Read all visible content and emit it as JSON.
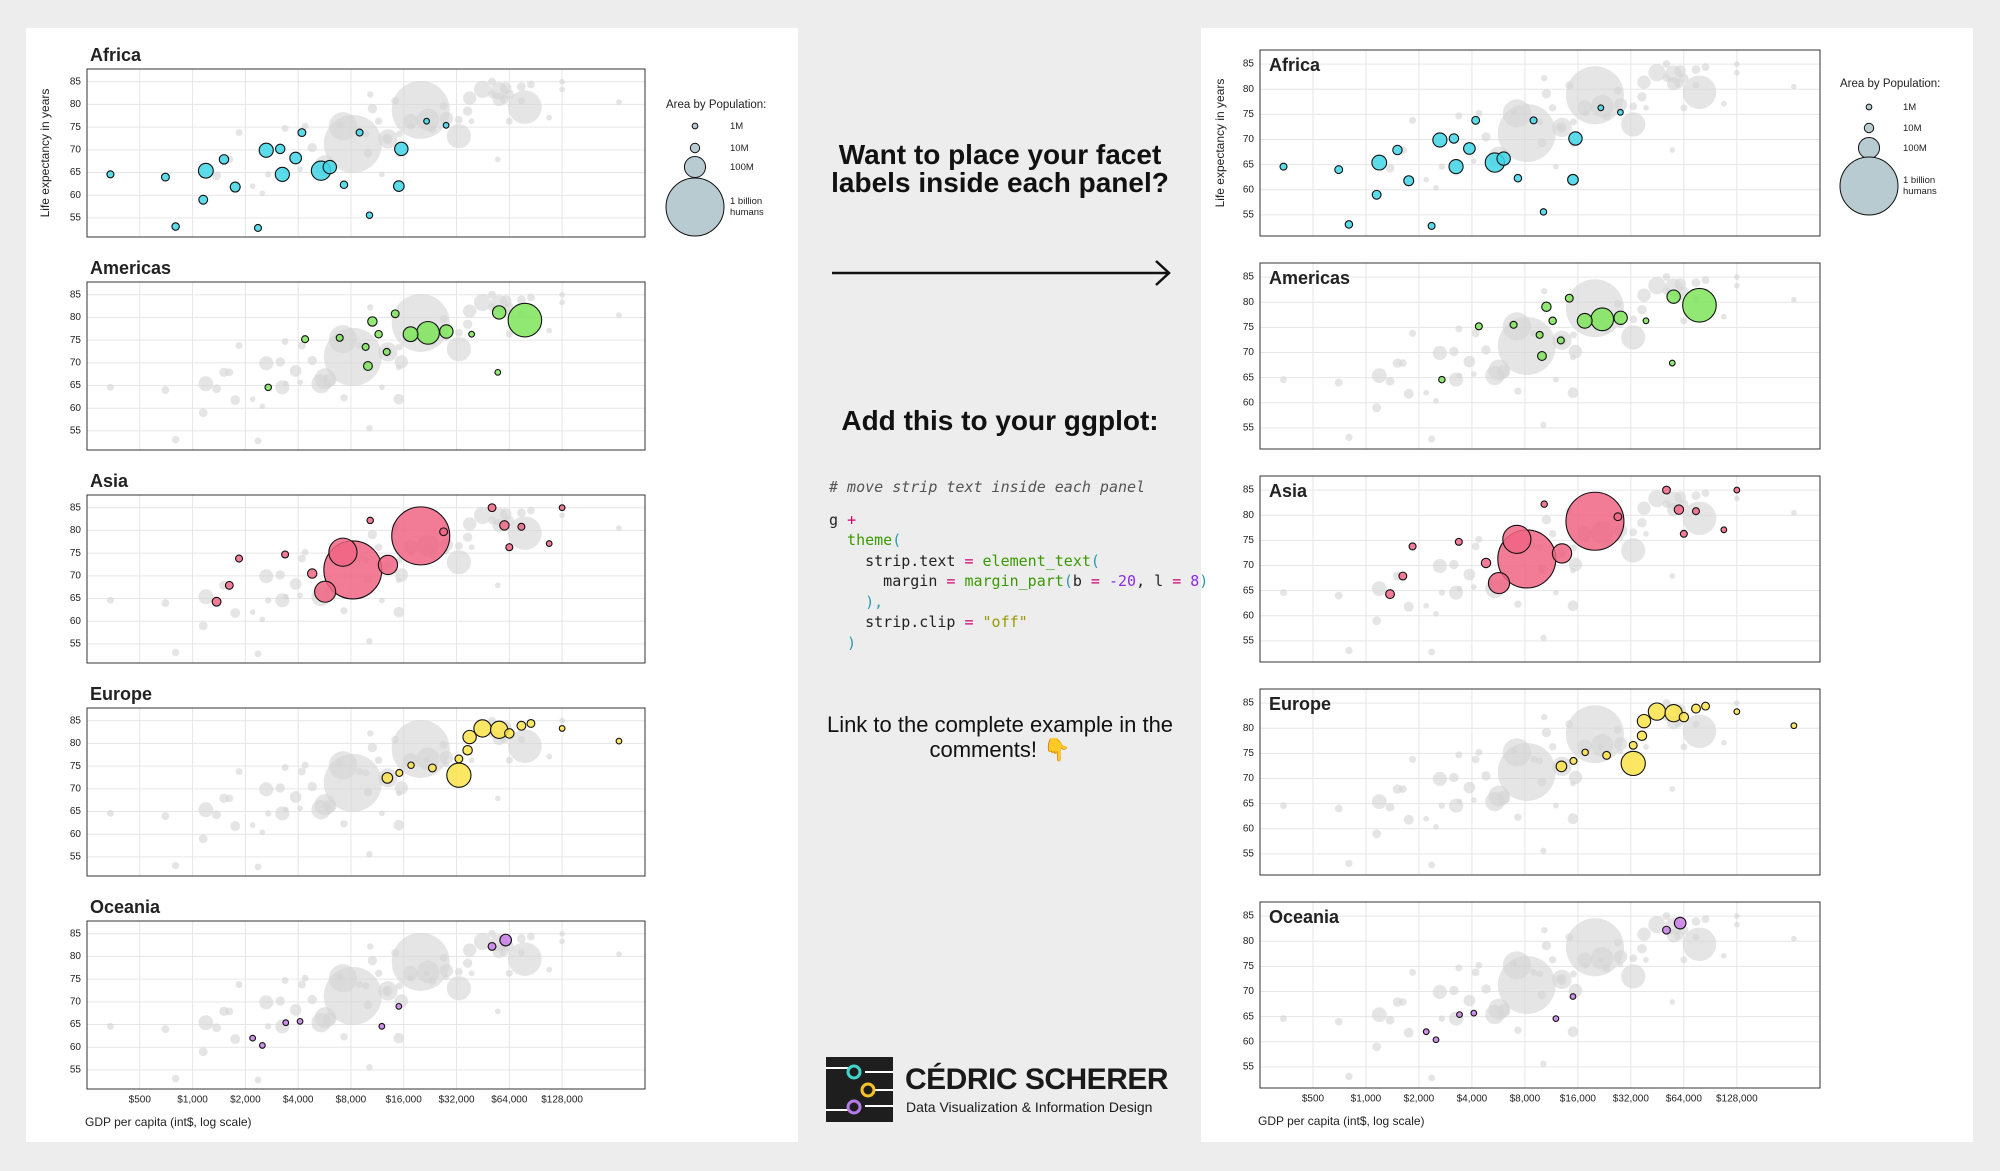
{
  "chart_data": [
    {
      "type": "scatter",
      "strip": "outside",
      "xscale": "log",
      "grid": true,
      "x_label": "GDP per capita (int$, log scale)",
      "y_label": "Life expectancy in years",
      "xlim": [
        250,
        380000
      ],
      "ylim": [
        50.8,
        87.8
      ],
      "xticks": [
        {
          "value": 500,
          "label": "$500"
        },
        {
          "value": 1000,
          "label": "$1,000"
        },
        {
          "value": 2000,
          "label": "$2,000"
        },
        {
          "value": 4000,
          "label": "$4,000"
        },
        {
          "value": 8000,
          "label": "$8,000"
        },
        {
          "value": 16000,
          "label": "$16,000"
        },
        {
          "value": 32000,
          "label": "$32,000"
        },
        {
          "value": 64000,
          "label": "$64,000"
        },
        {
          "value": 128000,
          "label": "$128,000"
        }
      ],
      "yticks": [
        55,
        60,
        65,
        70,
        75,
        80,
        85
      ],
      "legend_title": "Area by Population:",
      "size_legend": [
        {
          "value": 1000000,
          "label": "1M"
        },
        {
          "value": 10000000,
          "label": "10M"
        },
        {
          "value": 100000000,
          "label": "100M"
        },
        {
          "value": 1000000000,
          "label": "1 billion humans"
        }
      ],
      "series": [
        {
          "name": "Africa",
          "color": "#3fd6e8",
          "x": [
            340,
            700,
            800,
            1190,
            1510,
            1150,
            1750,
            2360,
            2630,
            3160,
            3250,
            3870,
            5400,
            6060,
            8960,
            15500,
            15000,
            10200,
            21600,
            27900,
            4200,
            7300
          ],
          "values": [
            64.6,
            64.0,
            53.1,
            65.4,
            67.9,
            59.0,
            61.8,
            52.8,
            69.9,
            70.2,
            64.6,
            68.2,
            65.4,
            66.2,
            73.8,
            70.2,
            62.0,
            55.6,
            76.3,
            75.4,
            73.8,
            62.3
          ],
          "sizes": [
            3000000,
            5000000,
            4000000,
            40000000,
            10000000,
            8000000,
            12000000,
            3000000,
            35000000,
            10000000,
            35000000,
            20000000,
            80000000,
            30000000,
            3000000,
            30000000,
            15000000,
            2000000,
            1000000,
            1000000,
            5000000,
            4000000
          ]
        },
        {
          "name": "Americas",
          "color": "#7ee55a",
          "x": [
            78500,
            22000,
            17500,
            28000,
            10600,
            14300,
            9700,
            56000,
            6900,
            4380,
            2700,
            10000,
            55000,
            39000,
            11500,
            12800
          ],
          "values": [
            79.4,
            76.6,
            76.3,
            76.9,
            79.1,
            80.8,
            73.5,
            81.1,
            75.5,
            75.2,
            64.6,
            69.3,
            67.9,
            76.3,
            76.3,
            72.4
          ],
          "sizes": [
            300000000,
            120000000,
            40000000,
            30000000,
            10000000,
            5000000,
            3000000,
            30000000,
            3000000,
            3000000,
            2000000,
            8000000,
            1000000,
            1000000,
            4000000,
            3000000
          ]
        },
        {
          "name": "Asia",
          "color": "#f06584",
          "x": [
            8200,
            20000,
            7200,
            5700,
            13000,
            51000,
            128000,
            1840,
            1370,
            1620,
            3370,
            4810,
            60000,
            75000,
            108000,
            10300,
            27000,
            64000
          ],
          "values": [
            71.3,
            78.8,
            75.2,
            66.5,
            72.4,
            85.0,
            85.0,
            73.8,
            64.3,
            67.9,
            74.7,
            70.5,
            81.1,
            80.8,
            77.1,
            82.2,
            79.7,
            76.3
          ],
          "sizes": [
            1000000000,
            1000000000,
            200000000,
            100000000,
            80000000,
            5000000,
            1000000,
            3000000,
            8000000,
            5000000,
            3000000,
            10000000,
            10000000,
            3000000,
            1000000,
            2000000,
            5000000,
            3000000
          ]
        },
        {
          "name": "Europe",
          "color": "#fbe34a",
          "x": [
            33000,
            12900,
            23300,
            45000,
            56000,
            38000,
            64000,
            75000,
            85000,
            37000,
            33000,
            128000,
            270000,
            15100,
            17600
          ],
          "values": [
            73.0,
            72.4,
            74.6,
            83.3,
            83.0,
            81.4,
            82.2,
            83.9,
            84.4,
            78.5,
            76.6,
            83.3,
            80.5,
            73.5,
            75.2
          ],
          "sizes": [
            140000000,
            15000000,
            5000000,
            60000000,
            60000000,
            30000000,
            10000000,
            8000000,
            5000000,
            10000000,
            5000000,
            1000000,
            1000000,
            3000000,
            2000000
          ]
        },
        {
          "name": "Oceania",
          "color": "#c77ce6",
          "x": [
            61000,
            51000,
            4100,
            3400,
            2200,
            2500,
            12000,
            15000
          ],
          "values": [
            83.6,
            82.2,
            65.7,
            65.4,
            62.0,
            60.4,
            64.6,
            69.0
          ],
          "sizes": [
            20000000,
            5000000,
            1000000,
            1000000,
            1000000,
            1000000,
            1000000,
            1000000
          ]
        }
      ]
    },
    {
      "type": "scatter",
      "strip": "inside",
      "xscale": "log",
      "grid": true,
      "x_label": "GDP per capita (int$, log scale)",
      "y_label": "Life expectancy in years",
      "xlim": [
        250,
        380000
      ],
      "ylim": [
        50.8,
        87.8
      ],
      "xticks": [
        {
          "value": 500,
          "label": "$500"
        },
        {
          "value": 1000,
          "label": "$1,000"
        },
        {
          "value": 2000,
          "label": "$2,000"
        },
        {
          "value": 4000,
          "label": "$4,000"
        },
        {
          "value": 8000,
          "label": "$8,000"
        },
        {
          "value": 16000,
          "label": "$16,000"
        },
        {
          "value": 32000,
          "label": "$32,000"
        },
        {
          "value": 64000,
          "label": "$64,000"
        },
        {
          "value": 128000,
          "label": "$128,000"
        }
      ],
      "yticks": [
        55,
        60,
        65,
        70,
        75,
        80,
        85
      ],
      "legend_title": "Area by Population:",
      "size_legend": [
        {
          "value": 1000000,
          "label": "1M"
        },
        {
          "value": 10000000,
          "label": "10M"
        },
        {
          "value": 100000000,
          "label": "100M"
        },
        {
          "value": 1000000000,
          "label": "1 billion humans"
        }
      ],
      "series": [
        {
          "name": "Africa",
          "color": "#3fd6e8",
          "x": [
            340,
            700,
            800,
            1190,
            1510,
            1150,
            1750,
            2360,
            2630,
            3160,
            3250,
            3870,
            5400,
            6060,
            8960,
            15500,
            15000,
            10200,
            21600,
            27900,
            4200,
            7300
          ],
          "values": [
            64.6,
            64.0,
            53.1,
            65.4,
            67.9,
            59.0,
            61.8,
            52.8,
            69.9,
            70.2,
            64.6,
            68.2,
            65.4,
            66.2,
            73.8,
            70.2,
            62.0,
            55.6,
            76.3,
            75.4,
            73.8,
            62.3
          ],
          "sizes": [
            3000000,
            5000000,
            4000000,
            40000000,
            10000000,
            8000000,
            12000000,
            3000000,
            35000000,
            10000000,
            35000000,
            20000000,
            80000000,
            30000000,
            3000000,
            30000000,
            15000000,
            2000000,
            1000000,
            1000000,
            5000000,
            4000000
          ]
        },
        {
          "name": "Americas",
          "color": "#7ee55a",
          "x": [
            78500,
            22000,
            17500,
            28000,
            10600,
            14300,
            9700,
            56000,
            6900,
            4380,
            2700,
            10000,
            55000,
            39000,
            11500,
            12800
          ],
          "values": [
            79.4,
            76.6,
            76.3,
            76.9,
            79.1,
            80.8,
            73.5,
            81.1,
            75.5,
            75.2,
            64.6,
            69.3,
            67.9,
            76.3,
            76.3,
            72.4
          ],
          "sizes": [
            300000000,
            120000000,
            40000000,
            30000000,
            10000000,
            5000000,
            3000000,
            30000000,
            3000000,
            3000000,
            2000000,
            8000000,
            1000000,
            1000000,
            4000000,
            3000000
          ]
        },
        {
          "name": "Asia",
          "color": "#f06584",
          "x": [
            8200,
            20000,
            7200,
            5700,
            13000,
            51000,
            128000,
            1840,
            1370,
            1620,
            3370,
            4810,
            60000,
            75000,
            108000,
            10300,
            27000,
            64000
          ],
          "values": [
            71.3,
            78.8,
            75.2,
            66.5,
            72.4,
            85.0,
            85.0,
            73.8,
            64.3,
            67.9,
            74.7,
            70.5,
            81.1,
            80.8,
            77.1,
            82.2,
            79.7,
            76.3
          ],
          "sizes": [
            1000000000,
            1000000000,
            200000000,
            100000000,
            80000000,
            5000000,
            1000000,
            3000000,
            8000000,
            5000000,
            3000000,
            10000000,
            10000000,
            3000000,
            1000000,
            2000000,
            5000000,
            3000000
          ]
        },
        {
          "name": "Europe",
          "color": "#fbe34a",
          "x": [
            33000,
            12900,
            23300,
            45000,
            56000,
            38000,
            64000,
            75000,
            85000,
            37000,
            33000,
            128000,
            270000,
            15100,
            17600
          ],
          "values": [
            73.0,
            72.4,
            74.6,
            83.3,
            83.0,
            81.4,
            82.2,
            83.9,
            84.4,
            78.5,
            76.6,
            83.3,
            80.5,
            73.5,
            75.2
          ],
          "sizes": [
            140000000,
            15000000,
            5000000,
            60000000,
            60000000,
            30000000,
            10000000,
            8000000,
            5000000,
            10000000,
            5000000,
            1000000,
            1000000,
            3000000,
            2000000
          ]
        },
        {
          "name": "Oceania",
          "color": "#c77ce6",
          "x": [
            61000,
            51000,
            4100,
            3400,
            2200,
            2500,
            12000,
            15000
          ],
          "values": [
            83.6,
            82.2,
            65.7,
            65.4,
            62.0,
            60.4,
            64.6,
            69.0
          ],
          "sizes": [
            20000000,
            5000000,
            1000000,
            1000000,
            1000000,
            1000000,
            1000000,
            1000000
          ]
        }
      ]
    }
  ],
  "headline": "Want to place your facet labels inside each panel?",
  "subheading": "Add this to your ggplot:",
  "code": {
    "lines": [
      [
        {
          "text": "# move strip text inside each panel",
          "color": "#555555"
        }
      ],
      [
        {
          "text": "g ",
          "color": "#222222"
        },
        {
          "text": "+",
          "color": "#d0006f"
        }
      ],
      [
        {
          "text": "  theme",
          "color": "#3a9a00"
        },
        {
          "text": "(",
          "color": "#2a9bb0"
        }
      ],
      [
        {
          "text": "    strip.text ",
          "color": "#222222"
        },
        {
          "text": "=",
          "color": "#d0006f"
        },
        {
          "text": " element_text",
          "color": "#3a9a00"
        },
        {
          "text": "(",
          "color": "#2a9bb0"
        }
      ],
      [
        {
          "text": "      margin ",
          "color": "#222222"
        },
        {
          "text": "=",
          "color": "#d0006f"
        },
        {
          "text": " margin_part",
          "color": "#3a9a00"
        },
        {
          "text": "(",
          "color": "#2a9bb0"
        },
        {
          "text": "b ",
          "color": "#222222"
        },
        {
          "text": "=",
          "color": "#d0006f"
        },
        {
          "text": " -20",
          "color": "#8a2be2"
        },
        {
          "text": ", l ",
          "color": "#222222"
        },
        {
          "text": "=",
          "color": "#d0006f"
        },
        {
          "text": " 8",
          "color": "#8a2be2"
        },
        {
          "text": ")",
          "color": "#2a9bb0"
        }
      ],
      [
        {
          "text": "    ),",
          "color": "#2a9bb0"
        }
      ],
      [
        {
          "text": "    strip.clip ",
          "color": "#222222"
        },
        {
          "text": "=",
          "color": "#d0006f"
        },
        {
          "text": " \"off\"",
          "color": "#9a9a00"
        }
      ],
      [
        {
          "text": "  )",
          "color": "#2a9bb0"
        }
      ]
    ]
  },
  "footnote": "Link to the complete example in the comments! 👇",
  "logo": {
    "name": "CÉDRIC SCHERER",
    "tagline": "Data Visualization & Information Design"
  }
}
